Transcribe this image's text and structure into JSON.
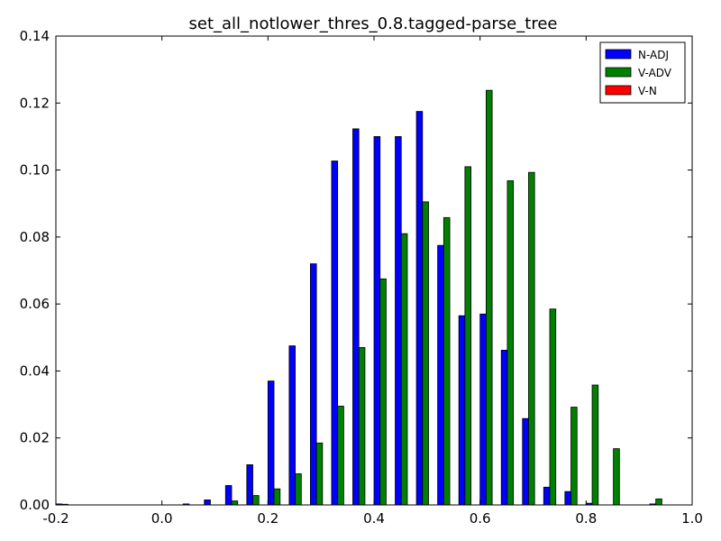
{
  "chart_data": {
    "type": "bar",
    "title": "set_all_notlower_thres_0.8.tagged-parse_tree",
    "xlabel": "",
    "ylabel": "",
    "xlim": [
      -0.2,
      1.0
    ],
    "ylim": [
      0.0,
      0.14
    ],
    "xticks": [
      "-0.2",
      "0.0",
      "0.2",
      "0.4",
      "0.6",
      "0.8",
      "1.0"
    ],
    "yticks": [
      "0.00",
      "0.02",
      "0.04",
      "0.06",
      "0.08",
      "0.10",
      "0.12",
      "0.14"
    ],
    "bin_centers": [
      -0.18,
      -0.14,
      -0.1,
      -0.06,
      -0.02,
      0.02,
      0.06,
      0.1,
      0.14,
      0.18,
      0.22,
      0.26,
      0.3,
      0.34,
      0.38,
      0.42,
      0.46,
      0.5,
      0.54,
      0.58,
      0.62,
      0.66,
      0.7,
      0.74,
      0.78,
      0.82,
      0.86,
      0.9,
      0.94,
      0.98
    ],
    "legend_position": "top-right",
    "grid": false,
    "series": [
      {
        "name": "N-ADJ",
        "color": "#0000ff",
        "values": [
          0.0003,
          0.0,
          0.0,
          0.0,
          0.0,
          0.0,
          0.0003,
          0.0015,
          0.0058,
          0.012,
          0.037,
          0.0475,
          0.072,
          0.1027,
          0.1123,
          0.11,
          0.11,
          0.1175,
          0.0775,
          0.0565,
          0.057,
          0.0462,
          0.0258,
          0.0053,
          0.004,
          0.0005,
          0.0,
          0.0,
          0.0003,
          0.0
        ]
      },
      {
        "name": "V-ADV",
        "color": "#008000",
        "values": [
          0.0002,
          0.0,
          0.0,
          0.0,
          0.0,
          0.0,
          0.0,
          0.0,
          0.0012,
          0.0028,
          0.0048,
          0.0093,
          0.0185,
          0.0295,
          0.047,
          0.0675,
          0.081,
          0.0905,
          0.0858,
          0.101,
          0.1238,
          0.0968,
          0.0993,
          0.0585,
          0.0292,
          0.0358,
          0.0168,
          0.0,
          0.0018,
          0.0
        ]
      },
      {
        "name": "V-N",
        "color": "#ff0000",
        "values": [
          0.0,
          0.0,
          0.0,
          0.0,
          0.0,
          0.0,
          0.0,
          0.0,
          0.0,
          0.0,
          0.0,
          0.0,
          0.0,
          0.0,
          0.0,
          0.0,
          0.0,
          0.0,
          0.0,
          0.0,
          0.0,
          0.0,
          0.0,
          0.0,
          0.0,
          0.0,
          0.0,
          0.0,
          0.0,
          0.0
        ]
      }
    ]
  }
}
